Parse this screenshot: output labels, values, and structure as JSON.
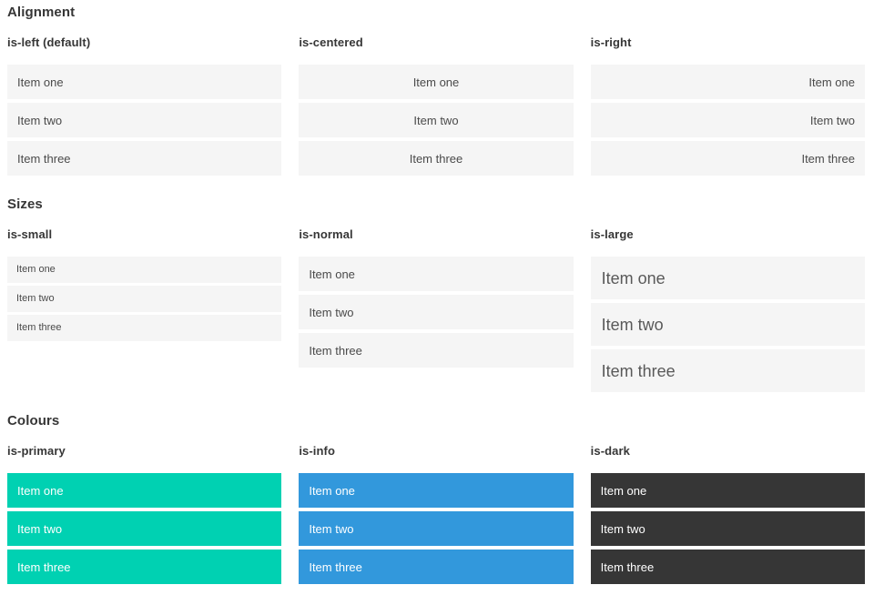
{
  "colors": {
    "primary": "#00d1b2",
    "info": "#3298dc",
    "dark": "#363636",
    "item_background": "#f5f5f5",
    "item_text": "#4a4a4a",
    "large_item_text": "#595959",
    "colored_item_text": "#ffffff",
    "heading": "#363636"
  },
  "sections": [
    {
      "title": "Alignment",
      "groups": [
        {
          "label": "is-left (default)",
          "items": [
            "Item one",
            "Item two",
            "Item three"
          ]
        },
        {
          "label": "is-centered",
          "items": [
            "Item one",
            "Item two",
            "Item three"
          ]
        },
        {
          "label": "is-right",
          "items": [
            "Item one",
            "Item two",
            "Item three"
          ]
        }
      ]
    },
    {
      "title": "Sizes",
      "groups": [
        {
          "label": "is-small",
          "items": [
            "Item one",
            "Item two",
            "Item three"
          ]
        },
        {
          "label": "is-normal",
          "items": [
            "Item one",
            "Item two",
            "Item three"
          ]
        },
        {
          "label": "is-large",
          "items": [
            "Item one",
            "Item two",
            "Item three"
          ]
        }
      ]
    },
    {
      "title": "Colours",
      "groups": [
        {
          "label": "is-primary",
          "items": [
            "Item one",
            "Item two",
            "Item three"
          ]
        },
        {
          "label": "is-info",
          "items": [
            "Item one",
            "Item two",
            "Item three"
          ]
        },
        {
          "label": "is-dark",
          "items": [
            "Item one",
            "Item two",
            "Item three"
          ]
        }
      ]
    }
  ]
}
